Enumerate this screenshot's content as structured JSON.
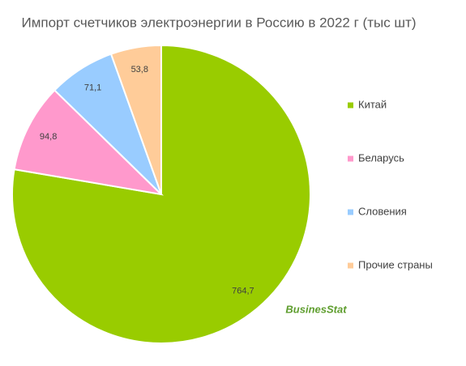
{
  "chart_data": {
    "type": "pie",
    "title": "Импорт счетчиков электроэнергии в Россию в 2022 г (тыс шт)",
    "categories": [
      "Китай",
      "Беларусь",
      "Словения",
      "Прочие страны"
    ],
    "values": [
      764.7,
      94.8,
      71.1,
      53.8
    ],
    "value_labels": [
      "764,7",
      "94,8",
      "71,1",
      "53,8"
    ],
    "colors": [
      "#99cc00",
      "#ff99cc",
      "#99ccff",
      "#ffcc99"
    ],
    "legend": "right",
    "watermark": "BusinesStat"
  }
}
